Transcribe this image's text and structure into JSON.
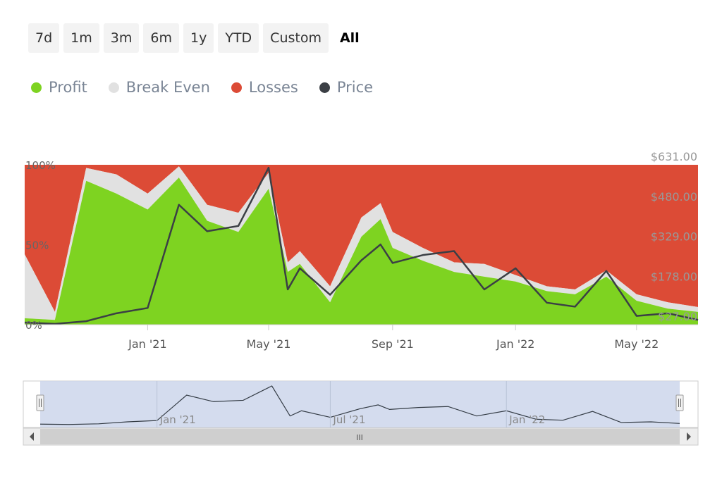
{
  "range_selector": {
    "buttons": [
      "7d",
      "1m",
      "3m",
      "6m",
      "1y",
      "YTD",
      "Custom",
      "All"
    ],
    "active": "All"
  },
  "legend": [
    {
      "label": "Profit",
      "color": "#7ed321"
    },
    {
      "label": "Break Even",
      "color": "#e1e1e1"
    },
    {
      "label": "Losses",
      "color": "#dc4b36"
    },
    {
      "label": "Price",
      "color": "#3b3f45"
    }
  ],
  "chart_data": {
    "type": "area",
    "stacked_percent": true,
    "title": "",
    "x_ticks": [
      "Jan '21",
      "May '21",
      "Sep '21",
      "Jan '22",
      "May '22"
    ],
    "left_axis": {
      "ticks": [
        "0%",
        "50%",
        "100%"
      ],
      "ylim": [
        0,
        100
      ]
    },
    "right_axis": {
      "ticks": [
        "$27.00",
        "$178.00",
        "$329.00",
        "$480.00",
        "$631.00"
      ],
      "ylim": [
        27,
        631
      ]
    },
    "colors": {
      "profit": "#7ed321",
      "break_even": "#e1e1e1",
      "losses": "#dc4b36",
      "price": "#3b3f45"
    },
    "x": [
      "2020-09-01",
      "2020-10-01",
      "2020-11-01",
      "2020-12-01",
      "2021-01-01",
      "2021-02-01",
      "2021-03-01",
      "2021-04-01",
      "2021-05-01",
      "2021-05-20",
      "2021-06-01",
      "2021-07-01",
      "2021-08-01",
      "2021-08-20",
      "2021-09-01",
      "2021-10-01",
      "2021-11-01",
      "2021-12-01",
      "2022-01-01",
      "2022-02-01",
      "2022-03-01",
      "2022-04-01",
      "2022-05-01",
      "2022-06-01",
      "2022-07-01"
    ],
    "series": [
      {
        "name": "Profit",
        "values": [
          4,
          3,
          90,
          82,
          72,
          92,
          65,
          58,
          85,
          33,
          38,
          14,
          55,
          66,
          48,
          40,
          33,
          30,
          27,
          21,
          19,
          30,
          15,
          10,
          8
        ]
      },
      {
        "name": "Break Even",
        "values": [
          40,
          5,
          8,
          12,
          10,
          7,
          10,
          12,
          10,
          6,
          8,
          10,
          12,
          10,
          10,
          8,
          6,
          8,
          4,
          3,
          3,
          4,
          4,
          4,
          3
        ]
      },
      {
        "name": "Losses",
        "values": [
          56,
          92,
          2,
          6,
          18,
          1,
          25,
          30,
          5,
          61,
          54,
          76,
          33,
          24,
          42,
          52,
          61,
          62,
          69,
          76,
          78,
          66,
          81,
          86,
          89
        ]
      },
      {
        "name": "Price",
        "values": [
          35,
          30,
          40,
          70,
          90,
          480,
          380,
          400,
          620,
          160,
          240,
          140,
          270,
          330,
          260,
          290,
          305,
          160,
          240,
          110,
          95,
          230,
          60,
          70,
          45
        ]
      }
    ]
  },
  "navigator": {
    "x_ticks": [
      "Jan '21",
      "Jul '21",
      "Jan '22"
    ],
    "scrollbar_grip": "III"
  }
}
